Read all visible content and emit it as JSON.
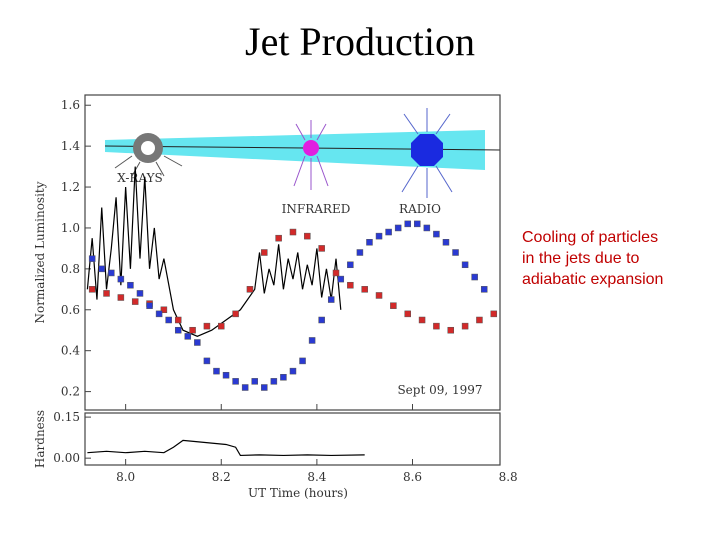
{
  "slide_title": "Jet Production",
  "caption": [
    "Cooling of particles",
    "in the jets due to",
    "adiabatic expansion"
  ],
  "chart_data": [
    {
      "type": "scatter",
      "ylabel": "Normalized Luminosity",
      "annotation": "Sept 09, 1997",
      "xlim": [
        7.915,
        8.783
      ],
      "ylim": [
        0.11,
        1.65
      ],
      "yticks": [
        0.2,
        0.4,
        0.6,
        0.8,
        {
          "value": 1,
          "label": "1.0"
        },
        1.2,
        1.4,
        1.6
      ],
      "series": [
        {
          "name": "X-RAYS",
          "color": "#000000",
          "mark": "line",
          "x": [
            7.92,
            7.93,
            7.94,
            7.95,
            7.96,
            7.97,
            7.98,
            7.99,
            8.0,
            8.01,
            8.02,
            8.03,
            8.04,
            8.05,
            8.06,
            8.07,
            8.08,
            8.1,
            8.12,
            8.15,
            8.18,
            8.21,
            8.24,
            8.27,
            8.28,
            8.29,
            8.3,
            8.31,
            8.32,
            8.33,
            8.34,
            8.35,
            8.36,
            8.37,
            8.38,
            8.39,
            8.4,
            8.41,
            8.42,
            8.43,
            8.44,
            8.45
          ],
          "values": [
            0.7,
            0.95,
            0.65,
            1.1,
            0.7,
            0.9,
            1.15,
            0.72,
            1.2,
            0.8,
            1.3,
            0.85,
            1.25,
            0.8,
            1.0,
            0.75,
            0.85,
            0.6,
            0.5,
            0.47,
            0.5,
            0.55,
            0.6,
            0.7,
            0.88,
            0.68,
            0.8,
            0.72,
            0.92,
            0.7,
            0.85,
            0.75,
            0.88,
            0.7,
            0.82,
            0.72,
            0.9,
            0.66,
            0.8,
            0.65,
            0.85,
            0.6
          ]
        },
        {
          "name": "INFRARED",
          "color": "#d22a2a",
          "mark": "square",
          "x": [
            7.93,
            7.96,
            7.99,
            8.02,
            8.05,
            8.08,
            8.11,
            8.14,
            8.17,
            8.2,
            8.23,
            8.26,
            8.29,
            8.32,
            8.35,
            8.38,
            8.41,
            8.44,
            8.47,
            8.5,
            8.53,
            8.56,
            8.59,
            8.62,
            8.65,
            8.68,
            8.71,
            8.74,
            8.77
          ],
          "values": [
            0.7,
            0.68,
            0.66,
            0.64,
            0.63,
            0.6,
            0.55,
            0.5,
            0.52,
            0.52,
            0.58,
            0.7,
            0.88,
            0.95,
            0.98,
            0.96,
            0.9,
            0.78,
            0.72,
            0.7,
            0.67,
            0.62,
            0.58,
            0.55,
            0.52,
            0.5,
            0.52,
            0.55,
            0.58
          ]
        },
        {
          "name": "RADIO",
          "color": "#2a3ad2",
          "mark": "square",
          "x": [
            7.93,
            7.95,
            7.97,
            7.99,
            8.01,
            8.03,
            8.05,
            8.07,
            8.09,
            8.11,
            8.13,
            8.15,
            8.17,
            8.19,
            8.21,
            8.23,
            8.25,
            8.27,
            8.29,
            8.31,
            8.33,
            8.35,
            8.37,
            8.39,
            8.41,
            8.43,
            8.45,
            8.47,
            8.49,
            8.51,
            8.53,
            8.55,
            8.57,
            8.59,
            8.61,
            8.63,
            8.65,
            8.67,
            8.69,
            8.71,
            8.73,
            8.75
          ],
          "values": [
            0.85,
            0.8,
            0.78,
            0.75,
            0.72,
            0.68,
            0.62,
            0.58,
            0.55,
            0.5,
            0.47,
            0.44,
            0.35,
            0.3,
            0.28,
            0.25,
            0.22,
            0.25,
            0.22,
            0.25,
            0.27,
            0.3,
            0.35,
            0.45,
            0.55,
            0.65,
            0.75,
            0.82,
            0.88,
            0.93,
            0.96,
            0.98,
            1.0,
            1.02,
            1.02,
            1.0,
            0.97,
            0.93,
            0.88,
            0.82,
            0.76,
            0.7
          ]
        }
      ]
    },
    {
      "type": "line",
      "ylabel": "Hardness",
      "xlabel": "UT Time (hours)",
      "xlim": [
        7.915,
        8.783
      ],
      "ylim": [
        -0.025,
        0.165
      ],
      "xticks": [
        {
          "value": 8,
          "label": "8.0"
        },
        8.2,
        8.4,
        8.6,
        8.8
      ],
      "yticks": [
        {
          "value": 0,
          "label": "0.00"
        },
        0.15
      ],
      "series": [
        {
          "color": "#000000",
          "mark": "line",
          "x": [
            7.92,
            7.96,
            8.0,
            8.04,
            8.08,
            8.1,
            8.12,
            8.15,
            8.18,
            8.21,
            8.23,
            8.24,
            8.28,
            8.33,
            8.38,
            8.43,
            8.5
          ],
          "values": [
            0.02,
            0.025,
            0.02,
            0.025,
            0.02,
            0.04,
            0.065,
            0.06,
            0.055,
            0.05,
            0.04,
            0.01,
            0.012,
            0.01,
            0.012,
            0.01,
            0.012
          ]
        }
      ]
    }
  ]
}
